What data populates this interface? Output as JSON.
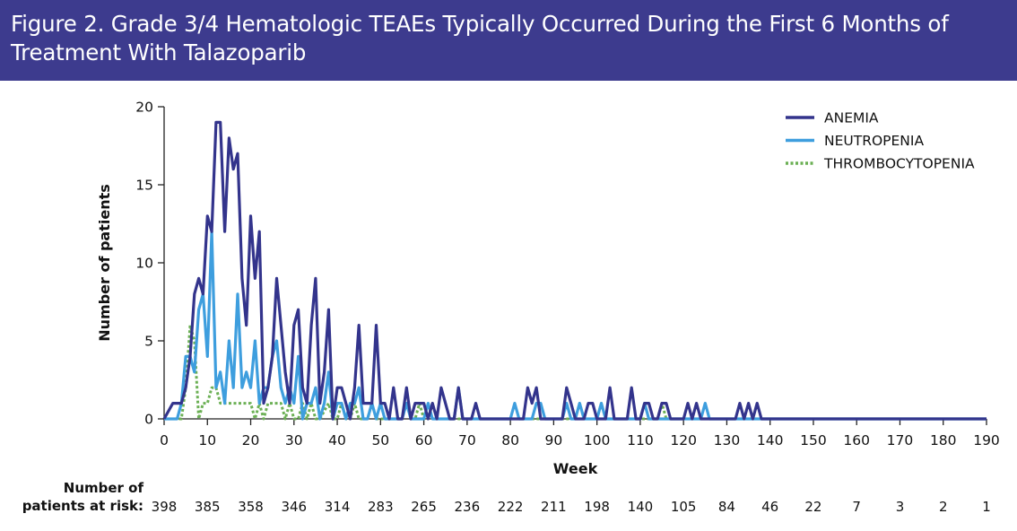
{
  "header": {
    "title": "Figure 2. Grade 3/4 Hematologic TEAEs Typically Occurred During the First 6 Months of Treatment With Talazoparib"
  },
  "chart_data": {
    "type": "line",
    "title": "Figure 2. Grade 3/4 Hematologic TEAEs Typically Occurred During the First 6 Months of Treatment With Talazoparib",
    "xlabel": "Week",
    "ylabel": "Number of patients",
    "xlim": [
      0,
      190
    ],
    "ylim": [
      0,
      20
    ],
    "x_ticks": [
      0,
      10,
      20,
      30,
      40,
      50,
      60,
      70,
      80,
      90,
      100,
      110,
      120,
      130,
      140,
      150,
      160,
      170,
      180,
      190
    ],
    "y_ticks": [
      0,
      5,
      10,
      15,
      20
    ],
    "legend_position": "top-right",
    "grid": false,
    "series": [
      {
        "name": "ANEMIA",
        "color": "#33348c",
        "style": "solid",
        "points": [
          [
            0,
            0
          ],
          [
            2,
            1
          ],
          [
            4,
            1
          ],
          [
            5,
            2
          ],
          [
            6,
            4
          ],
          [
            7,
            8
          ],
          [
            8,
            9
          ],
          [
            9,
            8
          ],
          [
            10,
            13
          ],
          [
            11,
            12
          ],
          [
            12,
            19
          ],
          [
            13,
            19
          ],
          [
            14,
            12
          ],
          [
            15,
            18
          ],
          [
            16,
            16
          ],
          [
            17,
            17
          ],
          [
            18,
            9
          ],
          [
            19,
            6
          ],
          [
            20,
            13
          ],
          [
            21,
            9
          ],
          [
            22,
            12
          ],
          [
            23,
            1
          ],
          [
            24,
            2
          ],
          [
            25,
            4
          ],
          [
            26,
            9
          ],
          [
            27,
            6
          ],
          [
            28,
            3
          ],
          [
            29,
            1
          ],
          [
            30,
            6
          ],
          [
            31,
            7
          ],
          [
            32,
            2
          ],
          [
            33,
            1
          ],
          [
            34,
            6
          ],
          [
            35,
            9
          ],
          [
            36,
            1
          ],
          [
            37,
            3
          ],
          [
            38,
            7
          ],
          [
            39,
            0
          ],
          [
            40,
            2
          ],
          [
            41,
            2
          ],
          [
            42,
            1
          ],
          [
            43,
            0
          ],
          [
            44,
            2
          ],
          [
            45,
            6
          ],
          [
            46,
            1
          ],
          [
            47,
            1
          ],
          [
            48,
            1
          ],
          [
            49,
            6
          ],
          [
            50,
            1
          ],
          [
            51,
            1
          ],
          [
            52,
            0
          ],
          [
            53,
            2
          ],
          [
            54,
            0
          ],
          [
            55,
            0
          ],
          [
            56,
            2
          ],
          [
            57,
            0
          ],
          [
            58,
            1
          ],
          [
            59,
            1
          ],
          [
            60,
            1
          ],
          [
            61,
            0
          ],
          [
            62,
            1
          ],
          [
            63,
            0
          ],
          [
            64,
            2
          ],
          [
            65,
            1
          ],
          [
            66,
            0
          ],
          [
            67,
            0
          ],
          [
            68,
            2
          ],
          [
            69,
            0
          ],
          [
            70,
            0
          ],
          [
            71,
            0
          ],
          [
            72,
            1
          ],
          [
            73,
            0
          ],
          [
            80,
            0
          ],
          [
            83,
            0
          ],
          [
            84,
            2
          ],
          [
            85,
            1
          ],
          [
            86,
            2
          ],
          [
            87,
            0
          ],
          [
            92,
            0
          ],
          [
            93,
            2
          ],
          [
            94,
            1
          ],
          [
            95,
            0
          ],
          [
            97,
            0
          ],
          [
            98,
            1
          ],
          [
            99,
            1
          ],
          [
            100,
            0
          ],
          [
            102,
            0
          ],
          [
            103,
            2
          ],
          [
            104,
            0
          ],
          [
            107,
            0
          ],
          [
            108,
            2
          ],
          [
            109,
            0
          ],
          [
            110,
            0
          ],
          [
            111,
            1
          ],
          [
            112,
            1
          ],
          [
            113,
            0
          ],
          [
            114,
            0
          ],
          [
            115,
            1
          ],
          [
            116,
            1
          ],
          [
            117,
            0
          ],
          [
            120,
            0
          ],
          [
            121,
            1
          ],
          [
            122,
            0
          ],
          [
            123,
            1
          ],
          [
            124,
            0
          ],
          [
            132,
            0
          ],
          [
            133,
            1
          ],
          [
            134,
            0
          ],
          [
            135,
            1
          ],
          [
            136,
            0
          ],
          [
            137,
            1
          ],
          [
            138,
            0
          ],
          [
            190,
            0
          ]
        ]
      },
      {
        "name": "NEUTROPENIA",
        "color": "#3e9ede",
        "style": "solid",
        "points": [
          [
            0,
            0
          ],
          [
            3,
            0
          ],
          [
            4,
            1
          ],
          [
            5,
            4
          ],
          [
            6,
            4
          ],
          [
            7,
            3
          ],
          [
            8,
            7
          ],
          [
            9,
            8
          ],
          [
            10,
            4
          ],
          [
            11,
            12
          ],
          [
            12,
            2
          ],
          [
            13,
            3
          ],
          [
            14,
            1
          ],
          [
            15,
            5
          ],
          [
            16,
            2
          ],
          [
            17,
            8
          ],
          [
            18,
            2
          ],
          [
            19,
            3
          ],
          [
            20,
            2
          ],
          [
            21,
            5
          ],
          [
            22,
            1
          ],
          [
            23,
            2
          ],
          [
            24,
            2
          ],
          [
            25,
            4
          ],
          [
            26,
            5
          ],
          [
            27,
            2
          ],
          [
            28,
            1
          ],
          [
            29,
            2
          ],
          [
            30,
            1
          ],
          [
            31,
            4
          ],
          [
            32,
            0
          ],
          [
            33,
            1
          ],
          [
            34,
            1
          ],
          [
            35,
            2
          ],
          [
            36,
            0
          ],
          [
            37,
            1
          ],
          [
            38,
            3
          ],
          [
            39,
            0
          ],
          [
            40,
            1
          ],
          [
            41,
            1
          ],
          [
            42,
            0
          ],
          [
            43,
            1
          ],
          [
            44,
            1
          ],
          [
            45,
            2
          ],
          [
            46,
            0
          ],
          [
            47,
            0
          ],
          [
            48,
            1
          ],
          [
            49,
            0
          ],
          [
            50,
            1
          ],
          [
            51,
            0
          ],
          [
            55,
            0
          ],
          [
            56,
            1
          ],
          [
            57,
            0
          ],
          [
            60,
            0
          ],
          [
            61,
            1
          ],
          [
            62,
            0
          ],
          [
            67,
            0
          ],
          [
            68,
            2
          ],
          [
            69,
            0
          ],
          [
            70,
            0
          ],
          [
            78,
            0
          ],
          [
            80,
            0
          ],
          [
            81,
            1
          ],
          [
            82,
            0
          ],
          [
            85,
            0
          ],
          [
            86,
            1
          ],
          [
            87,
            1
          ],
          [
            88,
            0
          ],
          [
            92,
            0
          ],
          [
            93,
            1
          ],
          [
            94,
            0
          ],
          [
            95,
            0
          ],
          [
            96,
            1
          ],
          [
            97,
            0
          ],
          [
            100,
            0
          ],
          [
            101,
            1
          ],
          [
            102,
            0
          ],
          [
            110,
            0
          ],
          [
            111,
            1
          ],
          [
            112,
            0
          ],
          [
            124,
            0
          ],
          [
            125,
            1
          ],
          [
            126,
            0
          ],
          [
            190,
            0
          ]
        ]
      },
      {
        "name": "THROMBOCYTOPENIA",
        "color": "#6cb055",
        "style": "dotted",
        "points": [
          [
            0,
            0
          ],
          [
            4,
            0
          ],
          [
            5,
            2
          ],
          [
            6,
            6
          ],
          [
            7,
            5
          ],
          [
            8,
            0
          ],
          [
            9,
            1
          ],
          [
            10,
            1
          ],
          [
            11,
            2
          ],
          [
            12,
            2
          ],
          [
            13,
            1
          ],
          [
            14,
            1
          ],
          [
            15,
            1
          ],
          [
            16,
            1
          ],
          [
            17,
            1
          ],
          [
            18,
            1
          ],
          [
            19,
            1
          ],
          [
            20,
            1
          ],
          [
            21,
            0
          ],
          [
            22,
            1
          ],
          [
            23,
            0
          ],
          [
            24,
            1
          ],
          [
            25,
            1
          ],
          [
            26,
            1
          ],
          [
            27,
            1
          ],
          [
            28,
            0
          ],
          [
            29,
            1
          ],
          [
            30,
            0
          ],
          [
            31,
            0
          ],
          [
            32,
            1
          ],
          [
            33,
            0
          ],
          [
            34,
            1
          ],
          [
            35,
            0
          ],
          [
            36,
            0
          ],
          [
            38,
            1
          ],
          [
            39,
            0
          ],
          [
            40,
            0
          ],
          [
            41,
            1
          ],
          [
            42,
            0
          ],
          [
            43,
            0
          ],
          [
            44,
            1
          ],
          [
            45,
            0
          ],
          [
            47,
            0
          ],
          [
            48,
            1
          ],
          [
            49,
            0
          ],
          [
            55,
            0
          ],
          [
            56,
            1
          ],
          [
            57,
            0
          ],
          [
            58,
            0
          ],
          [
            59,
            1
          ],
          [
            60,
            0
          ],
          [
            61,
            0
          ],
          [
            62,
            1
          ],
          [
            63,
            0
          ],
          [
            95,
            0
          ],
          [
            96,
            1
          ],
          [
            97,
            0
          ],
          [
            100,
            0
          ],
          [
            101,
            1
          ],
          [
            102,
            0
          ],
          [
            114,
            0
          ],
          [
            115,
            1
          ],
          [
            116,
            0
          ],
          [
            190,
            0
          ]
        ]
      }
    ],
    "at_risk": {
      "label_line1": "Number of",
      "label_line2": "patients at risk:",
      "weeks": [
        0,
        10,
        20,
        30,
        40,
        50,
        60,
        70,
        80,
        90,
        100,
        110,
        120,
        130,
        140,
        150,
        160,
        170,
        180,
        190
      ],
      "values": [
        "398",
        "385",
        "358",
        "346",
        "314",
        "283",
        "265",
        "236",
        "222",
        "211",
        "198",
        "140",
        "105",
        "84",
        "46",
        "22",
        "7",
        "3",
        "2",
        "1"
      ]
    }
  }
}
